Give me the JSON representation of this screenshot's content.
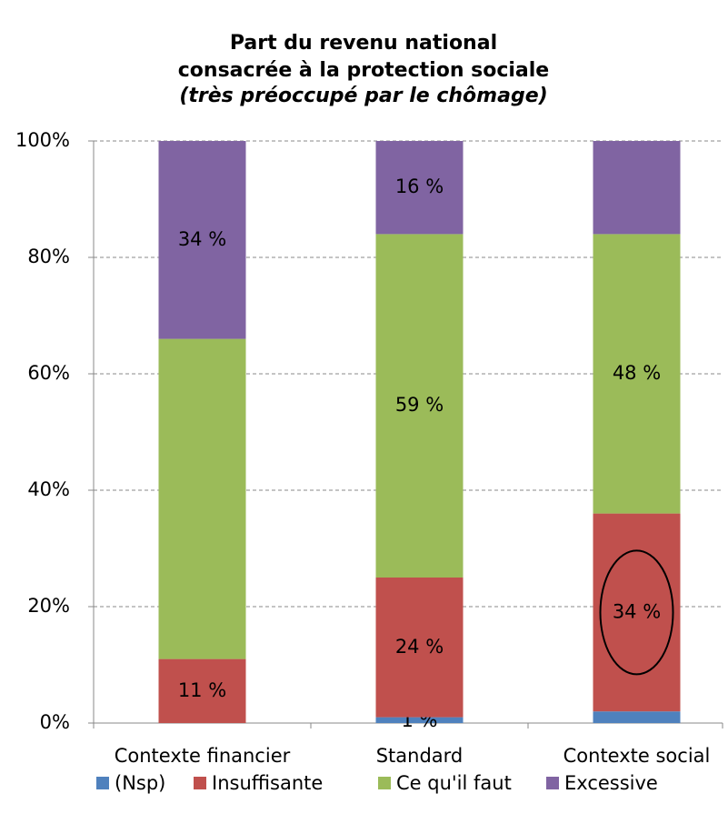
{
  "chart_data": {
    "type": "stacked_bar",
    "title": [
      "Part du revenu national",
      "consacrée à la protection sociale"
    ],
    "subtitle": "(très préoccupé par le chômage)",
    "categories": [
      "Contexte financier",
      "Standard",
      "Contexte social"
    ],
    "series": [
      {
        "name": "(Nsp)",
        "color": "#4f81bd",
        "values": [
          0,
          1,
          2
        ],
        "value_labels": [
          null,
          "1 %",
          null
        ]
      },
      {
        "name": "Insuffisante",
        "color": "#c0504d",
        "values": [
          11,
          24,
          34
        ],
        "value_labels": [
          "11 %",
          "24 %",
          "34 %"
        ]
      },
      {
        "name": "Ce qu'il faut",
        "color": "#9bbb59",
        "values": [
          55,
          59,
          48
        ],
        "value_labels": [
          null,
          "59 %",
          "48 %"
        ]
      },
      {
        "name": "Excessive",
        "color": "#8064a2",
        "values": [
          34,
          16,
          16
        ],
        "value_labels": [
          "34 %",
          "16 %",
          null
        ]
      }
    ],
    "ylim": [
      0,
      100
    ],
    "yticks": [
      {
        "value": 0,
        "label": "0%"
      },
      {
        "value": 20,
        "label": "20%"
      },
      {
        "value": 40,
        "label": "40%"
      },
      {
        "value": 60,
        "label": "60%"
      },
      {
        "value": 80,
        "label": "80%"
      },
      {
        "value": 100,
        "label": "100%"
      }
    ],
    "grid": true,
    "legend": "bottom"
  }
}
